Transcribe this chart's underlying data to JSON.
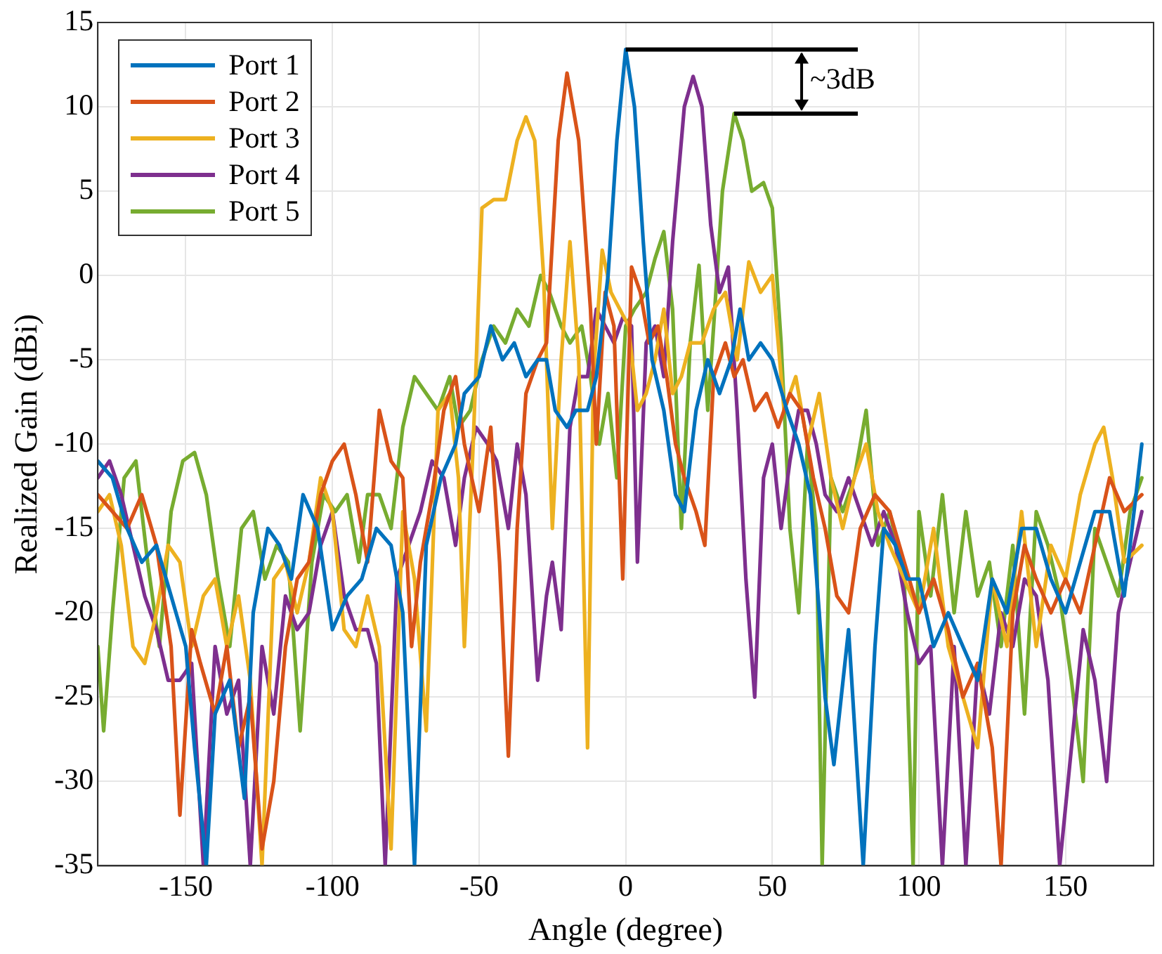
{
  "chart_data": {
    "type": "line",
    "xlabel": "Angle (degree)",
    "ylabel": "Realized Gain (dBi)",
    "xlim": [
      -180,
      180
    ],
    "ylim": [
      -35,
      15
    ],
    "xticks": [
      -150,
      -100,
      -50,
      0,
      50,
      100,
      150
    ],
    "yticks": [
      -35,
      -30,
      -25,
      -20,
      -15,
      -10,
      -5,
      0,
      5,
      10,
      15
    ],
    "grid": true,
    "legend": "top left",
    "annotations": [
      {
        "text": "~3dB",
        "x": 0,
        "y": 13.4
      }
    ],
    "series": [
      {
        "name": "Port 1",
        "color": "#0072bd",
        "x": [
          -180,
          -175,
          -170,
          -165,
          -160,
          -155,
          -150,
          -147,
          -143,
          -140,
          -135,
          -130,
          -127,
          -122,
          -118,
          -114,
          -110,
          -105,
          -100,
          -95,
          -90,
          -85,
          -80,
          -76,
          -72,
          -68,
          -63,
          -58,
          -55,
          -50,
          -46,
          -42,
          -38,
          -34,
          -30,
          -27,
          -24,
          -20,
          -17,
          -13,
          -10,
          -6,
          -3,
          0,
          3,
          6,
          9,
          13,
          17,
          20,
          24,
          28,
          32,
          36,
          39,
          42,
          46,
          50,
          55,
          59,
          63,
          66,
          68,
          71,
          76,
          81,
          85,
          88,
          92,
          96,
          100,
          105,
          110,
          115,
          120,
          125,
          130,
          135,
          140,
          145,
          150,
          155,
          160,
          165,
          170,
          176
        ],
        "values": [
          -11,
          -12,
          -15,
          -17,
          -16,
          -19,
          -22,
          -28,
          -35,
          -26,
          -24,
          -31,
          -20,
          -15,
          -16,
          -18,
          -13,
          -15,
          -21,
          -19,
          -18,
          -15,
          -16,
          -20,
          -35,
          -16,
          -12,
          -10,
          -7,
          -6,
          -3,
          -5,
          -4,
          -6,
          -5,
          -5,
          -8,
          -9,
          -8,
          -8,
          -6,
          0,
          8,
          13.4,
          10,
          2,
          -5,
          -8,
          -13,
          -14,
          -8,
          -5,
          -7,
          -5,
          -2,
          -5,
          -4,
          -5,
          -8,
          -10,
          -13,
          -20,
          -25,
          -29,
          -21,
          -35,
          -22,
          -15,
          -16,
          -18,
          -18,
          -22,
          -20,
          -22,
          -24,
          -18,
          -20,
          -15,
          -15,
          -18,
          -20,
          -17,
          -14,
          -14,
          -19,
          -10
        ]
      },
      {
        "name": "Port 2",
        "color": "#d95319",
        "x": [
          -180,
          -175,
          -170,
          -165,
          -160,
          -155,
          -152,
          -148,
          -145,
          -140,
          -136,
          -132,
          -128,
          -124,
          -120,
          -116,
          -112,
          -108,
          -104,
          -100,
          -96,
          -92,
          -88,
          -84,
          -80,
          -76,
          -73,
          -70,
          -66,
          -62,
          -58,
          -55,
          -50,
          -46,
          -43,
          -40,
          -37,
          -34,
          -30,
          -27,
          -23,
          -20,
          -16,
          -12,
          -10,
          -7,
          -4,
          -1,
          2,
          5,
          8,
          11,
          14,
          17,
          20,
          24,
          27,
          30,
          34,
          37,
          40,
          44,
          48,
          52,
          56,
          60,
          64,
          68,
          72,
          76,
          80,
          85,
          90,
          95,
          100,
          105,
          110,
          115,
          120,
          125,
          128,
          132,
          136,
          140,
          145,
          150,
          155,
          160,
          165,
          170,
          176
        ],
        "values": [
          -13,
          -14,
          -15,
          -13,
          -16,
          -22,
          -32,
          -21,
          -23,
          -26,
          -22,
          -28,
          -25,
          -34,
          -30,
          -22,
          -18,
          -17,
          -13,
          -11,
          -10,
          -13,
          -17,
          -8,
          -11,
          -12,
          -22,
          -17,
          -13,
          -8,
          -6,
          -10,
          -14,
          -9,
          -17,
          -28.5,
          -15,
          -7,
          -5,
          -4,
          8,
          12,
          8,
          -2,
          -10,
          -1,
          -3,
          -18,
          0.5,
          -1,
          -4,
          -3,
          -6,
          -10,
          -12,
          -14,
          -16,
          -6,
          -4,
          -6,
          -5,
          -8,
          -7,
          -9,
          -7,
          -8,
          -12,
          -15,
          -19,
          -20,
          -15,
          -13,
          -14,
          -17,
          -20,
          -18,
          -21,
          -25,
          -23,
          -28,
          -35,
          -20,
          -16,
          -18,
          -20,
          -18,
          -20,
          -16,
          -12,
          -14,
          -13
        ]
      },
      {
        "name": "Port 3",
        "color": "#edb120",
        "x": [
          -180,
          -176,
          -172,
          -168,
          -164,
          -160,
          -156,
          -152,
          -148,
          -144,
          -140,
          -136,
          -132,
          -128,
          -124,
          -120,
          -116,
          -112,
          -108,
          -104,
          -100,
          -96,
          -92,
          -88,
          -84,
          -80,
          -76,
          -72,
          -68,
          -64,
          -60,
          -57,
          -55,
          -52,
          -49,
          -45,
          -41,
          -37,
          -34,
          -31,
          -28,
          -25,
          -22,
          -19,
          -16,
          -13,
          -11,
          -8,
          -5,
          -2,
          1,
          4,
          7,
          10,
          13,
          16,
          19,
          22,
          26,
          30,
          34,
          38,
          42,
          46,
          50,
          54,
          58,
          62,
          66,
          70,
          74,
          78,
          82,
          86,
          90,
          95,
          100,
          105,
          110,
          115,
          120,
          125,
          130,
          135,
          140,
          145,
          150,
          155,
          160,
          163,
          166,
          170,
          176
        ],
        "values": [
          -14,
          -13,
          -16,
          -22,
          -23,
          -20,
          -16,
          -17,
          -22,
          -19,
          -18,
          -22,
          -19,
          -24,
          -35,
          -18,
          -17,
          -20,
          -17,
          -12,
          -14,
          -21,
          -22,
          -19,
          -22,
          -34,
          -14,
          -18,
          -27,
          -8,
          -7,
          -12,
          -22,
          -10,
          4,
          4.5,
          4.5,
          8,
          9.4,
          8,
          0,
          -15,
          -5,
          2,
          -5,
          -28,
          -6,
          1.5,
          -1,
          -2,
          -3,
          -8,
          -7,
          -5,
          -2,
          -7,
          -6,
          -4,
          -4,
          -2,
          -1,
          -5,
          0.8,
          -1,
          0,
          -8,
          -6,
          -10,
          -7,
          -12,
          -15,
          -12,
          -10,
          -14,
          -16,
          -18,
          -20,
          -15,
          -22,
          -25,
          -28,
          -18,
          -22,
          -14,
          -22,
          -16,
          -18,
          -13,
          -10,
          -9,
          -12,
          -17,
          -16
        ]
      },
      {
        "name": "Port 4",
        "color": "#7e2f8e",
        "x": [
          -180,
          -176,
          -172,
          -168,
          -164,
          -160,
          -156,
          -152,
          -148,
          -144,
          -140,
          -136,
          -132,
          -128,
          -124,
          -120,
          -116,
          -112,
          -108,
          -104,
          -100,
          -96,
          -92,
          -88,
          -85,
          -82,
          -78,
          -74,
          -70,
          -66,
          -62,
          -58,
          -55,
          -51,
          -47,
          -44,
          -40,
          -37,
          -34,
          -30,
          -27,
          -25,
          -22,
          -19,
          -16,
          -13,
          -10,
          -7,
          -4,
          -1,
          2,
          4,
          7,
          10,
          13,
          16,
          20,
          23,
          26,
          29,
          32,
          35,
          38,
          41,
          44,
          47,
          50,
          53,
          56,
          59,
          62,
          65,
          68,
          72,
          76,
          80,
          84,
          88,
          92,
          96,
          100,
          104,
          108,
          112,
          116,
          120,
          124,
          128,
          132,
          136,
          140,
          144,
          148,
          152,
          156,
          160,
          164,
          168,
          172,
          176
        ],
        "values": [
          -12,
          -11,
          -13,
          -16,
          -19,
          -21,
          -24,
          -24,
          -23,
          -35,
          -22,
          -26,
          -24,
          -35,
          -22,
          -26,
          -19,
          -21,
          -20,
          -16,
          -14,
          -19,
          -21,
          -21,
          -23,
          -35,
          -18,
          -16,
          -14,
          -11,
          -12,
          -16,
          -12,
          -9,
          -10,
          -11,
          -15,
          -10,
          -13,
          -24,
          -19,
          -17,
          -21,
          -9,
          -6,
          -6,
          -2,
          -3,
          -4,
          -2.5,
          -3,
          -17,
          -4,
          -3,
          -6,
          2,
          10,
          11.8,
          10,
          3,
          -1,
          0.5,
          -8,
          -18,
          -25,
          -12,
          -10,
          -15,
          -11,
          -8,
          -8,
          -10,
          -13,
          -14,
          -12,
          -14,
          -16,
          -14,
          -16,
          -20,
          -23,
          -22,
          -35,
          -22,
          -35,
          -23,
          -26,
          -20,
          -22,
          -18,
          -19,
          -24,
          -35,
          -28,
          -21,
          -24,
          -30,
          -20,
          -17,
          -14
        ]
      },
      {
        "name": "Port 5",
        "color": "#77ac30",
        "x": [
          -180,
          -178,
          -175,
          -171,
          -167,
          -163,
          -159,
          -155,
          -151,
          -147,
          -143,
          -139,
          -135,
          -131,
          -127,
          -123,
          -119,
          -115,
          -111,
          -107,
          -103,
          -99,
          -95,
          -91,
          -88,
          -84,
          -80,
          -76,
          -72,
          -68,
          -64,
          -60,
          -57,
          -53,
          -49,
          -45,
          -41,
          -37,
          -33,
          -29,
          -26,
          -22,
          -19,
          -15,
          -12,
          -9,
          -6,
          -3,
          0,
          3,
          7,
          10,
          13,
          16,
          19,
          22,
          25,
          28,
          30,
          33,
          37,
          40,
          43,
          47,
          50,
          53,
          56,
          59,
          62,
          65,
          67,
          70,
          74,
          78,
          82,
          86,
          90,
          95,
          98,
          100,
          104,
          108,
          112,
          116,
          120,
          124,
          128,
          132,
          136,
          140,
          144,
          148,
          152,
          156,
          160,
          164,
          168,
          172,
          176
        ],
        "values": [
          -22,
          -27,
          -20,
          -12,
          -11,
          -17,
          -22,
          -14,
          -11,
          -10.5,
          -13,
          -18,
          -22,
          -15,
          -14,
          -18,
          -16,
          -17,
          -27,
          -17,
          -13,
          -14,
          -13,
          -17,
          -13,
          -13,
          -15,
          -9,
          -6,
          -7,
          -8,
          -6,
          -9,
          -8,
          -5,
          -3,
          -4,
          -2,
          -3,
          0,
          -1,
          -3,
          -4,
          -3,
          -6,
          -10,
          -7,
          -12,
          -3,
          -2,
          -1,
          1,
          2.6,
          -2,
          -15,
          -4,
          0.6,
          -8,
          -3,
          5,
          9.6,
          8,
          5,
          5.5,
          4,
          -4,
          -15,
          -20,
          -10,
          -15,
          -35,
          -12,
          -14,
          -12,
          -8,
          -16,
          -14,
          -18,
          -35,
          -14,
          -19,
          -13,
          -20,
          -14,
          -19,
          -17,
          -22,
          -16,
          -26,
          -14,
          -16,
          -19,
          -24,
          -30,
          -15,
          -17,
          -19,
          -14,
          -12
        ]
      }
    ]
  }
}
